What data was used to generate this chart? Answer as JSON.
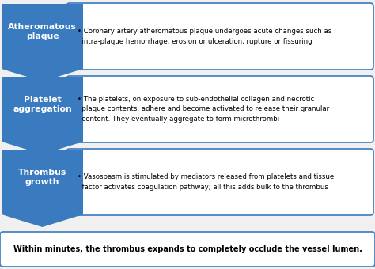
{
  "background_color": "#f0f0f0",
  "arrow_color": "#3a7abf",
  "box_border_color": "#3a7abf",
  "box_fill_color": "#ffffff",
  "arrow_text_color": "#ffffff",
  "box_text_color": "#000000",
  "footer_border_color": "#3a7abf",
  "rows": [
    {
      "label": "Atheromatous\nplaque",
      "text": "• Coronary artery atheromatous plaque undergoes acute changes such as\n  intra-plaque hemorrhage, erosion or ulceration, rupture or fissuring"
    },
    {
      "label": "Platelet\naggregation",
      "text": "• The platelets, on exposure to sub-endothelial collagen and necrotic\n  plaque contents, adhere and become activated to release their granular\n  content. They eventually aggregate to form microthrombi"
    },
    {
      "label": "Thrombus\ngrowth",
      "text": "• Vasospasm is stimulated by mediators released from platelets and tissue\n  factor activates coagulation pathway; all this adds bulk to the thrombus"
    }
  ],
  "footer_text": "Within minutes, the thrombus expands to completely occlude the vessel lumen.",
  "n_rows": 3,
  "fig_width": 4.74,
  "fig_height": 3.4,
  "dpi": 100
}
